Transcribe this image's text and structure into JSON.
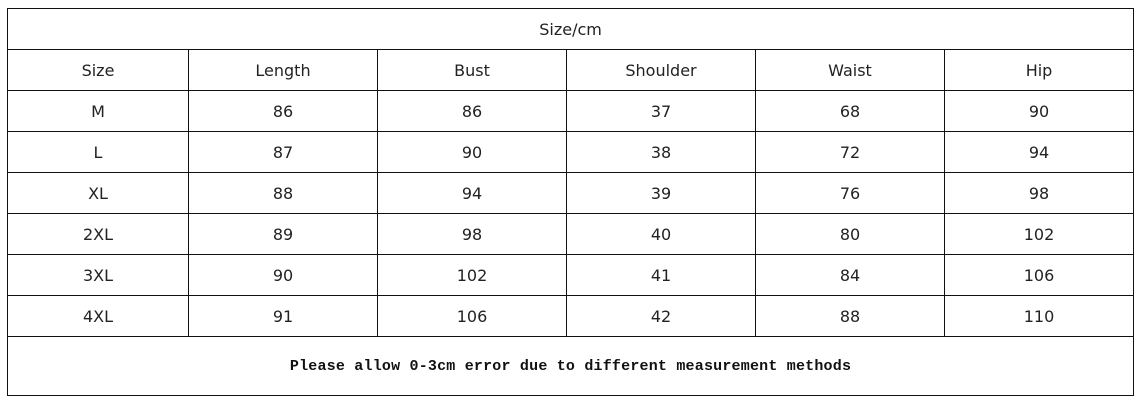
{
  "table": {
    "title": "Size/cm",
    "headers": [
      "Size",
      "Length",
      "Bust",
      "Shoulder",
      "Waist",
      "Hip"
    ],
    "rows": [
      [
        "M",
        "86",
        "86",
        "37",
        "68",
        "90"
      ],
      [
        "L",
        "87",
        "90",
        "38",
        "72",
        "94"
      ],
      [
        "XL",
        "88",
        "94",
        "39",
        "76",
        "98"
      ],
      [
        "2XL",
        "89",
        "98",
        "40",
        "80",
        "102"
      ],
      [
        "3XL",
        "90",
        "102",
        "41",
        "84",
        "106"
      ],
      [
        "4XL",
        "91",
        "106",
        "42",
        "88",
        "110"
      ]
    ],
    "note": "Please allow 0-3cm error due to different measurement methods"
  }
}
